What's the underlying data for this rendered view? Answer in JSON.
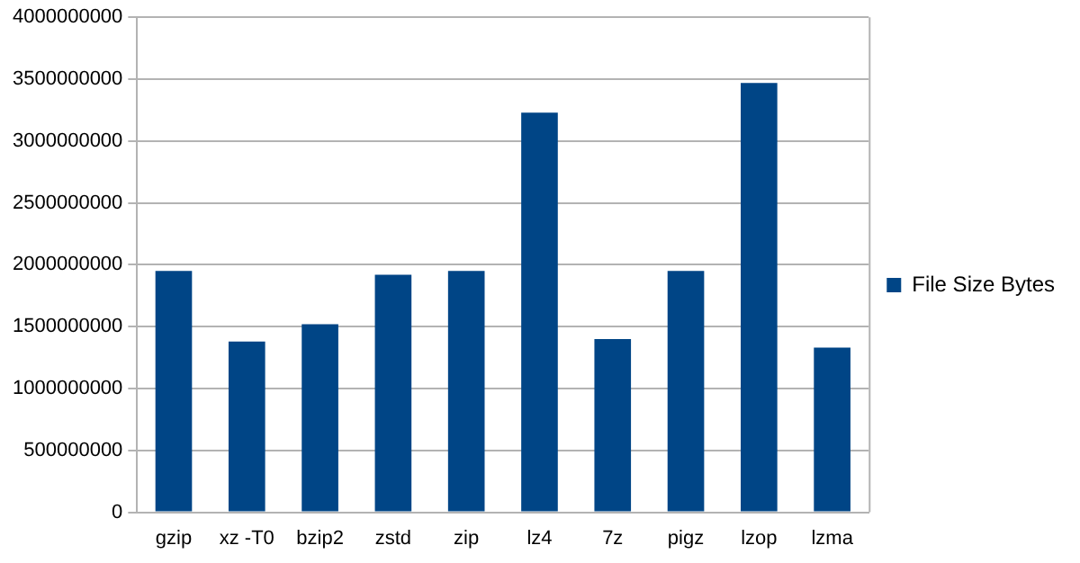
{
  "chart_data": {
    "type": "bar",
    "categories": [
      "gzip",
      "xz -T0",
      "bzip2",
      "zstd",
      "zip",
      "lz4",
      "7z",
      "pigz",
      "lzop",
      "lzma"
    ],
    "series": [
      {
        "name": "File Size Bytes",
        "color": "#004586",
        "values": [
          1950000000,
          1380000000,
          1520000000,
          1920000000,
          1950000000,
          3230000000,
          1400000000,
          1950000000,
          3470000000,
          1330000000
        ]
      }
    ],
    "ylim": [
      0,
      4000000000
    ],
    "yticks": [
      0,
      500000000,
      1000000000,
      1500000000,
      2000000000,
      2500000000,
      3000000000,
      3500000000,
      4000000000
    ],
    "grid": "y",
    "legend": "right"
  }
}
